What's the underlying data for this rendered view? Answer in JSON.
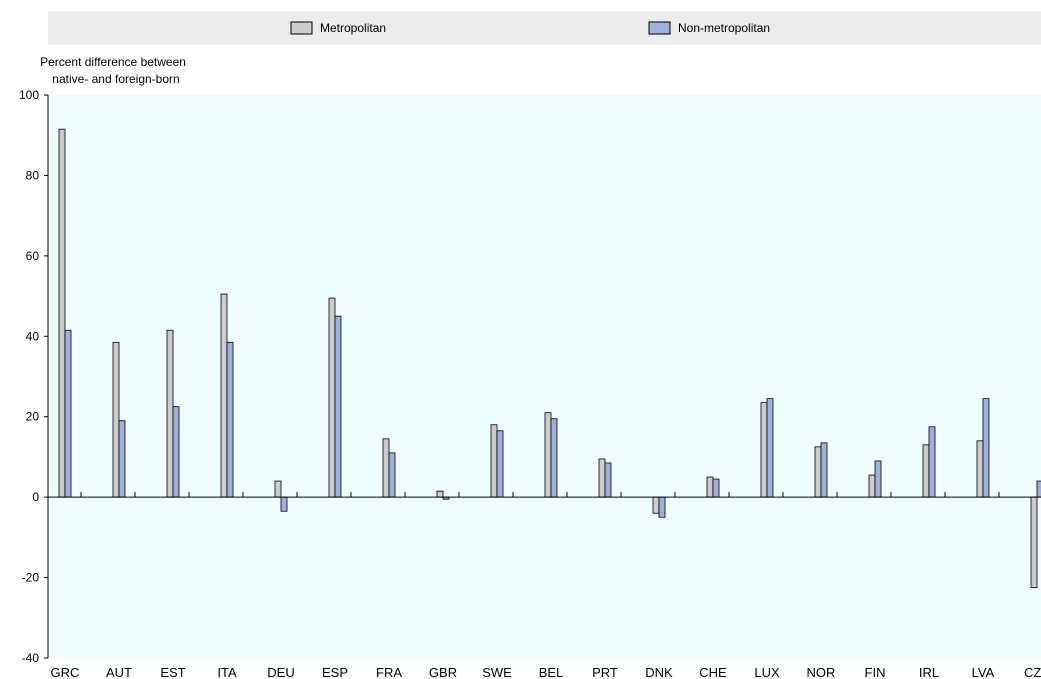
{
  "chart_data": {
    "type": "bar",
    "ylabel": "Percent difference between native- and foreign-born",
    "ylabel_lines": [
      "Percent difference between",
      "native- and foreign-born"
    ],
    "ylim": [
      -40,
      100
    ],
    "yticks": [
      -40,
      -20,
      0,
      20,
      40,
      60,
      80,
      100
    ],
    "legend_position": "top",
    "grid": false,
    "categories": [
      "GRC",
      "AUT",
      "EST",
      "ITA",
      "DEU",
      "ESP",
      "FRA",
      "GBR",
      "SWE",
      "BEL",
      "PRT",
      "DNK",
      "CHE",
      "LUX",
      "NOR",
      "FIN",
      "IRL",
      "LVA",
      "CZE"
    ],
    "series": [
      {
        "name": "Metropolitan",
        "color": "#cccccc",
        "values": [
          91.5,
          38.5,
          41.5,
          50.5,
          4,
          49.5,
          14.5,
          1.5,
          18,
          21,
          9.5,
          -4,
          5,
          23.5,
          12.5,
          5.5,
          13,
          14,
          -22.5
        ]
      },
      {
        "name": "Non-metropolitan",
        "color": "#9eb0de",
        "values": [
          41.5,
          19,
          22.5,
          38.5,
          -3.5,
          45,
          11,
          -0.5,
          16.5,
          19.5,
          8.5,
          -5,
          4.5,
          24.5,
          13.5,
          9,
          17.5,
          24.5,
          4
        ]
      }
    ]
  },
  "colors": {
    "plot_background": "#eefdff",
    "legend_background": "#ececec",
    "bar_outline": "#000000"
  }
}
